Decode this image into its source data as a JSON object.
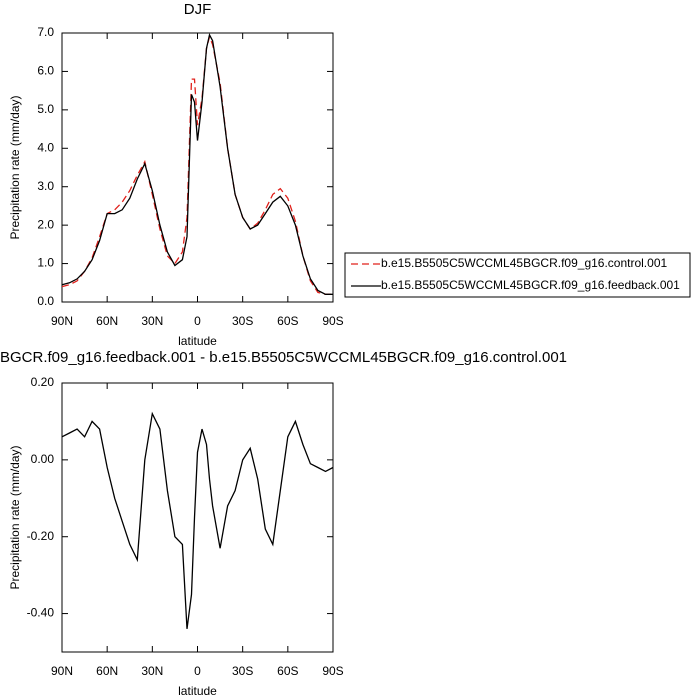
{
  "chart_data": [
    {
      "type": "line",
      "title": "DJF",
      "ylabel": "Precipitation rate (mm/day)",
      "xlabel": "latitude",
      "x": [
        90,
        85,
        80,
        75,
        70,
        65,
        60,
        55,
        50,
        45,
        40,
        35,
        30,
        25,
        20,
        15,
        10,
        7,
        4,
        2,
        0,
        -3,
        -6,
        -8,
        -10,
        -15,
        -20,
        -25,
        -30,
        -35,
        -40,
        -45,
        -50,
        -55,
        -60,
        -65,
        -70,
        -75,
        -80,
        -85,
        -90
      ],
      "series": [
        {
          "name": "b.e15.B5505C5WCCML45BGCR.f09_g16.control.001",
          "color": "#e0201b",
          "dash": true,
          "values": [
            0.4,
            0.45,
            0.55,
            0.8,
            1.15,
            1.7,
            2.3,
            2.4,
            2.6,
            2.9,
            3.3,
            3.65,
            2.8,
            1.9,
            1.2,
            1.0,
            1.3,
            2.2,
            5.8,
            5.8,
            4.6,
            5.3,
            6.6,
            6.9,
            6.7,
            5.7,
            4.0,
            2.8,
            2.2,
            1.9,
            2.05,
            2.4,
            2.8,
            2.95,
            2.7,
            2.1,
            1.2,
            0.55,
            0.25,
            0.2,
            0.2
          ]
        },
        {
          "name": "b.e15.B5505C5WCCML45BGCR.f09_g16.feedback.001",
          "color": "#000000",
          "dash": false,
          "values": [
            0.45,
            0.5,
            0.6,
            0.8,
            1.1,
            1.6,
            2.3,
            2.3,
            2.4,
            2.7,
            3.2,
            3.6,
            2.9,
            2.0,
            1.3,
            0.95,
            1.1,
            1.7,
            5.4,
            5.2,
            4.2,
            5.2,
            6.6,
            6.95,
            6.8,
            5.6,
            4.0,
            2.8,
            2.2,
            1.9,
            2.0,
            2.3,
            2.6,
            2.75,
            2.5,
            2.0,
            1.2,
            0.6,
            0.3,
            0.2,
            0.2
          ]
        }
      ],
      "xlim": [
        90,
        -90
      ],
      "xticks": [
        {
          "value": 90,
          "label": "90N"
        },
        {
          "value": 60,
          "label": "60N"
        },
        {
          "value": 30,
          "label": "30N"
        },
        0,
        {
          "value": -30,
          "label": "30S"
        },
        {
          "value": -60,
          "label": "60S"
        },
        {
          "value": -90,
          "label": "90S"
        }
      ],
      "ylim": [
        0,
        7
      ],
      "yticks": [
        {
          "value": 0,
          "label": "0.0"
        },
        {
          "value": 1,
          "label": "1.0"
        },
        {
          "value": 2,
          "label": "2.0"
        },
        {
          "value": 3,
          "label": "3.0"
        },
        {
          "value": 4,
          "label": "4.0"
        },
        {
          "value": 5,
          "label": "5.0"
        },
        {
          "value": 6,
          "label": "6.0"
        },
        {
          "value": 7,
          "label": "7.0"
        }
      ],
      "legend": "right"
    },
    {
      "type": "line",
      "title": "BGCR.f09_g16.feedback.001 - b.e15.B5505C5WCCML45BGCR.f09_g16.control.001",
      "ylabel": "Precipitation rate (mm/day)",
      "xlabel": "latitude",
      "x": [
        90,
        85,
        80,
        75,
        70,
        65,
        60,
        55,
        50,
        45,
        40,
        35,
        30,
        25,
        20,
        15,
        10,
        7,
        4,
        2,
        0,
        -3,
        -6,
        -8,
        -10,
        -15,
        -20,
        -25,
        -30,
        -35,
        -40,
        -45,
        -50,
        -55,
        -60,
        -65,
        -70,
        -75,
        -80,
        -85,
        -90
      ],
      "series": [
        {
          "color": "#000000",
          "dash": false,
          "values": [
            0.06,
            0.07,
            0.08,
            0.06,
            0.1,
            0.08,
            -0.02,
            -0.1,
            -0.16,
            -0.22,
            -0.26,
            0.0,
            0.12,
            0.08,
            -0.08,
            -0.2,
            -0.22,
            -0.44,
            -0.35,
            -0.15,
            0.02,
            0.08,
            0.04,
            -0.05,
            -0.12,
            -0.23,
            -0.12,
            -0.08,
            0.0,
            0.03,
            -0.05,
            -0.18,
            -0.22,
            -0.08,
            0.06,
            0.1,
            0.04,
            -0.01,
            -0.02,
            -0.03,
            -0.02
          ]
        }
      ],
      "xlim": [
        90,
        -90
      ],
      "xticks": [
        {
          "value": 90,
          "label": "90N"
        },
        {
          "value": 60,
          "label": "60N"
        },
        {
          "value": 30,
          "label": "30N"
        },
        0,
        {
          "value": -30,
          "label": "30S"
        },
        {
          "value": -60,
          "label": "60S"
        },
        {
          "value": -90,
          "label": "90S"
        }
      ],
      "ylim": [
        -0.5,
        0.2
      ],
      "yticks": [
        {
          "value": 0.2,
          "label": "0.20"
        },
        {
          "value": 0,
          "label": "0.00"
        },
        {
          "value": -0.2,
          "label": "-0.20"
        },
        {
          "value": -0.4,
          "label": "-0.40"
        }
      ]
    }
  ]
}
